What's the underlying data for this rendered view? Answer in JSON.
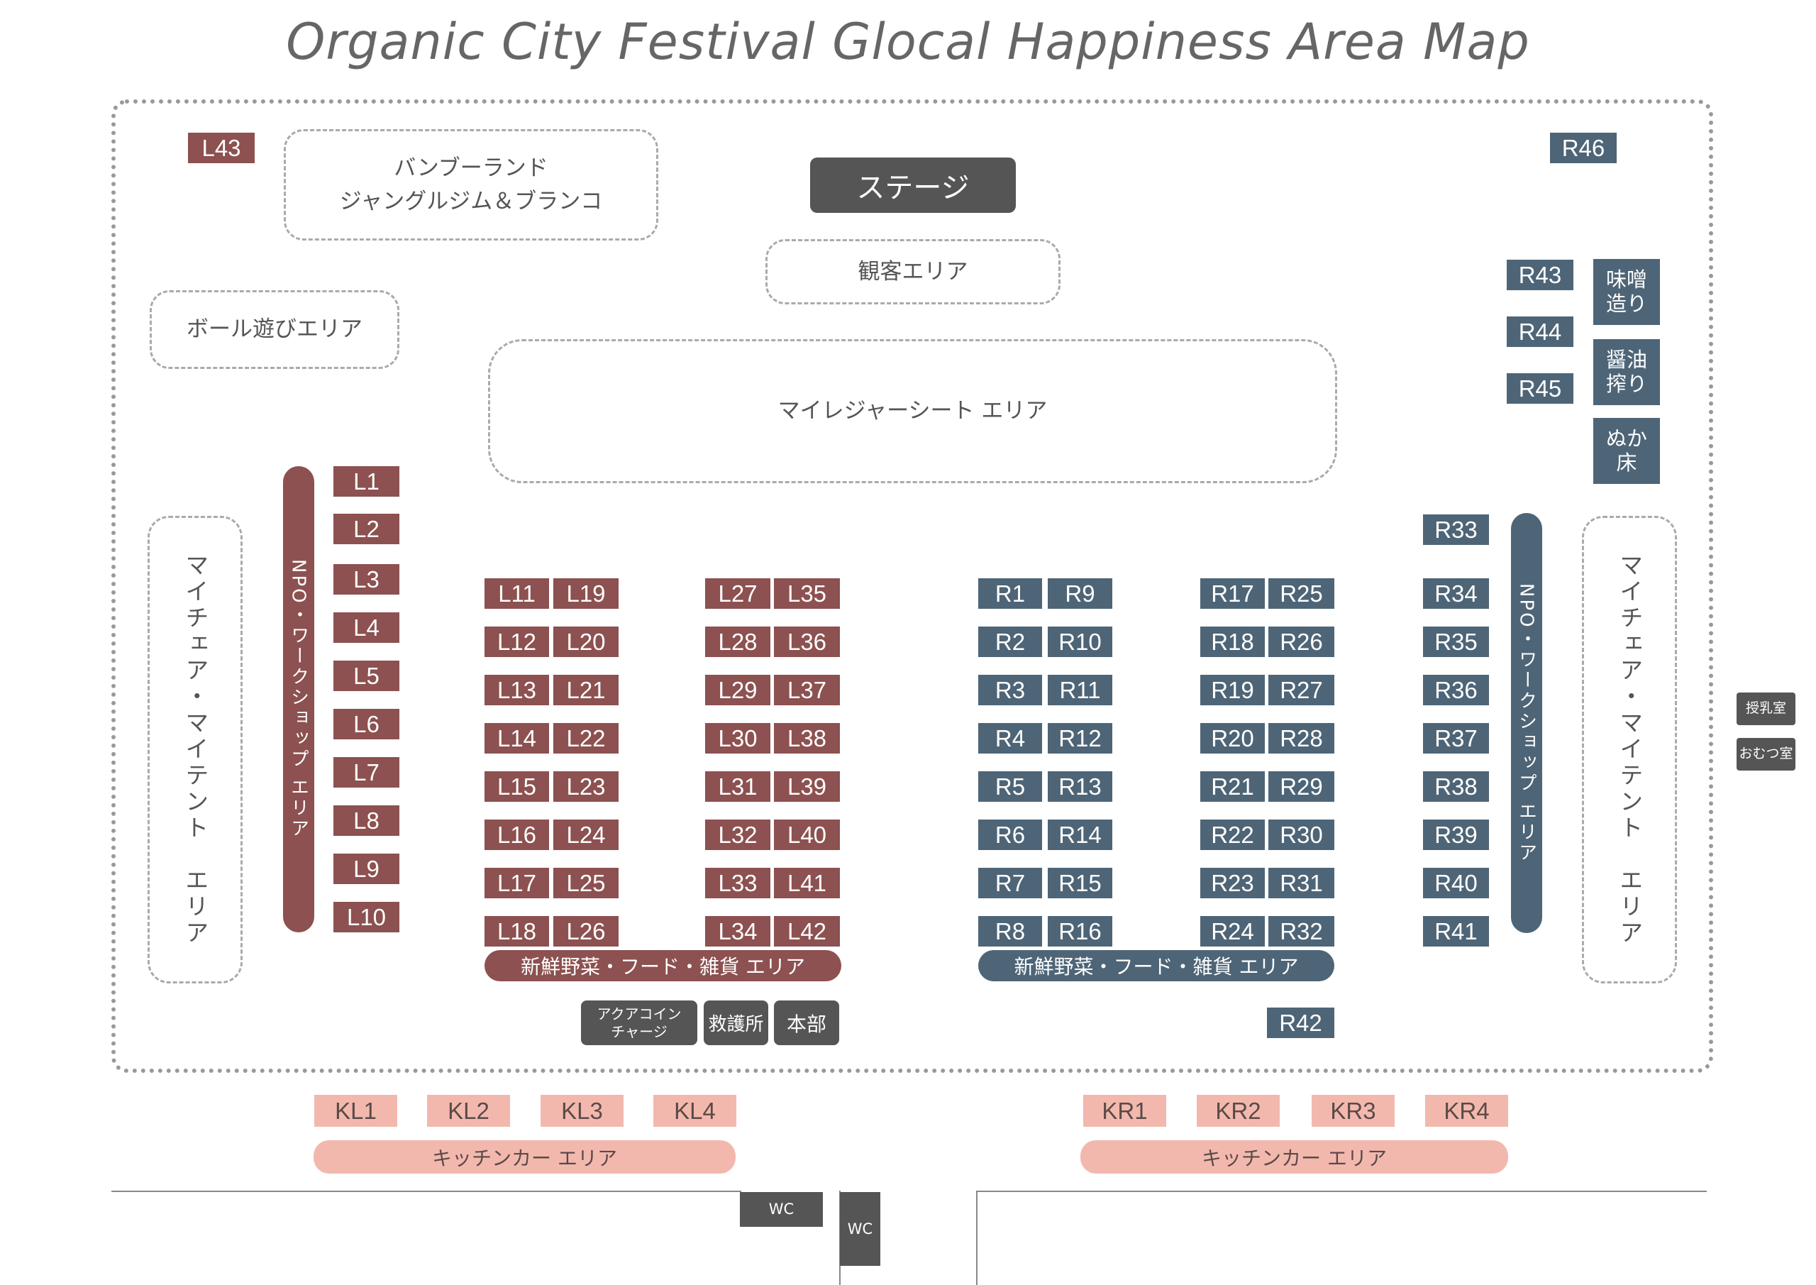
{
  "title": "Organic City Festival Glocal Happiness Area Map",
  "colors": {
    "left_booth": "#8c5150",
    "right_booth": "#4e6577",
    "kitchen": "#f3b8ad",
    "facility": "#555555"
  },
  "zones": {
    "bamboo_line1": "バンブーランド",
    "bamboo_line2": "ジャングルジム＆ブランコ",
    "stage": "ステージ",
    "audience": "観客エリア",
    "ball": "ボール遊びエリア",
    "leisure": "マイレジャーシート エリア",
    "mychair_left": "マイチェア・マイテント　エリア",
    "mychair_right": "マイチェア・マイテント　エリア",
    "npo_left": "NPO・ワークショップ エリア",
    "npo_right": "NPO・ワークショップ エリア",
    "fresh_left": "新鮮野菜・フード・雑貨 エリア",
    "fresh_right": "新鮮野菜・フード・雑貨 エリア",
    "kitchen_left": "キッチンカー エリア",
    "kitchen_right": "キッチンカー エリア"
  },
  "special": {
    "miso_1": "味噌",
    "miso_2": "造り",
    "shoyu_1": "醤油",
    "shoyu_2": "搾り",
    "nuka_1": "ぬか",
    "nuka_2": "床",
    "aqua_1": "アクアコイン",
    "aqua_2": "チャージ",
    "kyugo": "救護所",
    "honbu": "本部",
    "junyu": "授乳室",
    "omutsu": "おむつ室",
    "wc1": "WC",
    "wc2": "WC"
  },
  "booths": {
    "L43": "L43",
    "R46": "R46",
    "R43": "R43",
    "R44": "R44",
    "R45": "R45",
    "R42": "R42",
    "L_col1": [
      "L1",
      "L2",
      "L3",
      "L4",
      "L5",
      "L6",
      "L7",
      "L8",
      "L9",
      "L10"
    ],
    "L_col2": [
      "L11",
      "L12",
      "L13",
      "L14",
      "L15",
      "L16",
      "L17",
      "L18"
    ],
    "L_col3": [
      "L19",
      "L20",
      "L21",
      "L22",
      "L23",
      "L24",
      "L25",
      "L26"
    ],
    "L_col4": [
      "L27",
      "L28",
      "L29",
      "L30",
      "L31",
      "L32",
      "L33",
      "L34"
    ],
    "L_col5": [
      "L35",
      "L36",
      "L37",
      "L38",
      "L39",
      "L40",
      "L41",
      "L42"
    ],
    "R_col1": [
      "R1",
      "R2",
      "R3",
      "R4",
      "R5",
      "R6",
      "R7",
      "R8"
    ],
    "R_col2": [
      "R9",
      "R10",
      "R11",
      "R12",
      "R13",
      "R14",
      "R15",
      "R16"
    ],
    "R_col3": [
      "R17",
      "R18",
      "R19",
      "R20",
      "R21",
      "R22",
      "R23",
      "R24"
    ],
    "R_col4": [
      "R25",
      "R26",
      "R27",
      "R28",
      "R29",
      "R30",
      "R31",
      "R32"
    ],
    "R_col5": [
      "R33",
      "R34",
      "R35",
      "R36",
      "R37",
      "R38",
      "R39",
      "R40",
      "R41"
    ],
    "KL": [
      "KL1",
      "KL2",
      "KL3",
      "KL4"
    ],
    "KR": [
      "KR1",
      "KR2",
      "KR3",
      "KR4"
    ]
  }
}
